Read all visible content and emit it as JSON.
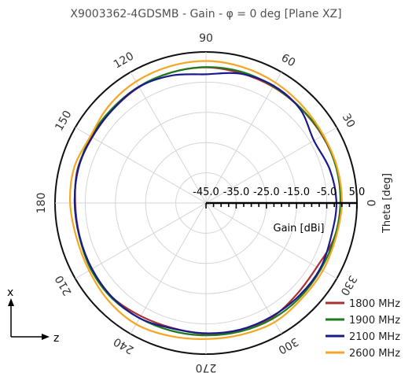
{
  "chart_data": {
    "type": "polar-line",
    "title": "X9003362-4GDSMB - Gain - φ = 0 deg [Plane XZ]",
    "angular_axis": {
      "label": "Theta [deg]",
      "ticks": [
        {
          "angle": 0,
          "label": "0"
        },
        {
          "angle": 30,
          "label": "30"
        },
        {
          "angle": 60,
          "label": "60"
        },
        {
          "angle": 90,
          "label": "90"
        },
        {
          "angle": 120,
          "label": "120"
        },
        {
          "angle": 150,
          "label": "150"
        },
        {
          "angle": 180,
          "label": "180"
        },
        {
          "angle": 210,
          "label": "210"
        },
        {
          "angle": 240,
          "label": "240"
        },
        {
          "angle": 270,
          "label": "270"
        },
        {
          "angle": 300,
          "label": "300"
        },
        {
          "angle": 330,
          "label": "330"
        }
      ]
    },
    "radial_axis": {
      "label": "Gain [dBi]",
      "range": [
        -45,
        5
      ],
      "ticks": [
        {
          "value": -45,
          "label": "-45.0"
        },
        {
          "value": -35,
          "label": "-35.0"
        },
        {
          "value": -25,
          "label": "-25.0"
        },
        {
          "value": -15,
          "label": "-15.0"
        },
        {
          "value": -5,
          "label": "-5.0"
        },
        {
          "value": 5,
          "label": "5.0"
        }
      ],
      "grid_rings": [
        -35,
        -25,
        -15,
        -5,
        5
      ],
      "grid": true
    },
    "legend_position": "bottom-right",
    "series": [
      {
        "name": "1800 MHz",
        "color": "#a83232",
        "points": [
          {
            "theta": 0,
            "gain": -0.5
          },
          {
            "theta": 15,
            "gain": -0.3
          },
          {
            "theta": 30,
            "gain": -0.5
          },
          {
            "theta": 45,
            "gain": -0.7
          },
          {
            "theta": 60,
            "gain": -0.6
          },
          {
            "theta": 75,
            "gain": -0.5
          },
          {
            "theta": 90,
            "gain": -0.1
          },
          {
            "theta": 105,
            "gain": -0.3
          },
          {
            "theta": 120,
            "gain": -0.7
          },
          {
            "theta": 135,
            "gain": -1.3
          },
          {
            "theta": 150,
            "gain": -1.5
          },
          {
            "theta": 165,
            "gain": -1.0
          },
          {
            "theta": 180,
            "gain": -1.7
          },
          {
            "theta": 195,
            "gain": -1.7
          },
          {
            "theta": 210,
            "gain": -1.2
          },
          {
            "theta": 225,
            "gain": -1.0
          },
          {
            "theta": 240,
            "gain": -1.8
          },
          {
            "theta": 255,
            "gain": -2.2
          },
          {
            "theta": 270,
            "gain": -1.7
          },
          {
            "theta": 285,
            "gain": -1.1
          },
          {
            "theta": 300,
            "gain": -1.3
          },
          {
            "theta": 315,
            "gain": -2.4
          },
          {
            "theta": 330,
            "gain": -2.6
          },
          {
            "theta": 345,
            "gain": -1.0
          }
        ]
      },
      {
        "name": "1900 MHz",
        "color": "#1e7a1e",
        "points": [
          {
            "theta": 0,
            "gain": -0.4
          },
          {
            "theta": 15,
            "gain": -0.3
          },
          {
            "theta": 30,
            "gain": -0.3
          },
          {
            "theta": 45,
            "gain": -0.6
          },
          {
            "theta": 60,
            "gain": -0.4
          },
          {
            "theta": 75,
            "gain": 0.0
          },
          {
            "theta": 90,
            "gain": 0.0
          },
          {
            "theta": 105,
            "gain": -0.3
          },
          {
            "theta": 120,
            "gain": -0.5
          },
          {
            "theta": 135,
            "gain": -0.9
          },
          {
            "theta": 150,
            "gain": -1.0
          },
          {
            "theta": 165,
            "gain": -1.2
          },
          {
            "theta": 180,
            "gain": -1.5
          },
          {
            "theta": 195,
            "gain": -1.6
          },
          {
            "theta": 210,
            "gain": -1.0
          },
          {
            "theta": 225,
            "gain": -0.7
          },
          {
            "theta": 240,
            "gain": -1.0
          },
          {
            "theta": 255,
            "gain": -1.2
          },
          {
            "theta": 270,
            "gain": -1.2
          },
          {
            "theta": 285,
            "gain": -1.0
          },
          {
            "theta": 300,
            "gain": -0.8
          },
          {
            "theta": 315,
            "gain": -0.9
          },
          {
            "theta": 330,
            "gain": -1.1
          },
          {
            "theta": 345,
            "gain": -0.9
          }
        ]
      },
      {
        "name": "2100 MHz",
        "color": "#1a1a8c",
        "points": [
          {
            "theta": 0,
            "gain": -1.8
          },
          {
            "theta": 15,
            "gain": -2.5
          },
          {
            "theta": 30,
            "gain": -3.7
          },
          {
            "theta": 45,
            "gain": -1.0
          },
          {
            "theta": 60,
            "gain": -0.2
          },
          {
            "theta": 75,
            "gain": -0.7
          },
          {
            "theta": 90,
            "gain": -2.4
          },
          {
            "theta": 105,
            "gain": -1.3
          },
          {
            "theta": 120,
            "gain": -0.6
          },
          {
            "theta": 135,
            "gain": -1.3
          },
          {
            "theta": 150,
            "gain": -1.4
          },
          {
            "theta": 165,
            "gain": -1.2
          },
          {
            "theta": 180,
            "gain": -1.5
          },
          {
            "theta": 195,
            "gain": -1.7
          },
          {
            "theta": 210,
            "gain": -1.4
          },
          {
            "theta": 225,
            "gain": -1.0
          },
          {
            "theta": 240,
            "gain": -1.0
          },
          {
            "theta": 255,
            "gain": -2.0
          },
          {
            "theta": 270,
            "gain": -1.9
          },
          {
            "theta": 285,
            "gain": -1.6
          },
          {
            "theta": 300,
            "gain": -1.6
          },
          {
            "theta": 315,
            "gain": -1.5
          },
          {
            "theta": 330,
            "gain": -1.4
          },
          {
            "theta": 345,
            "gain": -2.1
          }
        ]
      },
      {
        "name": "2600 MHz",
        "color": "#f5a623",
        "points": [
          {
            "theta": 0,
            "gain": 0.0
          },
          {
            "theta": 15,
            "gain": 0.0
          },
          {
            "theta": 30,
            "gain": -0.1
          },
          {
            "theta": 45,
            "gain": 0.3
          },
          {
            "theta": 60,
            "gain": 1.0
          },
          {
            "theta": 75,
            "gain": 1.6
          },
          {
            "theta": 90,
            "gain": 2.0
          },
          {
            "theta": 105,
            "gain": 1.8
          },
          {
            "theta": 120,
            "gain": 1.4
          },
          {
            "theta": 135,
            "gain": 0.5
          },
          {
            "theta": 150,
            "gain": -0.8
          },
          {
            "theta": 165,
            "gain": 0.2
          },
          {
            "theta": 180,
            "gain": 0.0
          },
          {
            "theta": 195,
            "gain": -0.6
          },
          {
            "theta": 210,
            "gain": -0.3
          },
          {
            "theta": 225,
            "gain": 0.7
          },
          {
            "theta": 240,
            "gain": 1.3
          },
          {
            "theta": 255,
            "gain": 0.6
          },
          {
            "theta": 270,
            "gain": 0.0
          },
          {
            "theta": 285,
            "gain": 0.1
          },
          {
            "theta": 300,
            "gain": 0.5
          },
          {
            "theta": 315,
            "gain": -0.2
          },
          {
            "theta": 330,
            "gain": -0.3
          },
          {
            "theta": 345,
            "gain": -0.5
          }
        ]
      }
    ]
  },
  "coordinate_indicator": {
    "vertical_label": "x",
    "horizontal_label": "z"
  }
}
